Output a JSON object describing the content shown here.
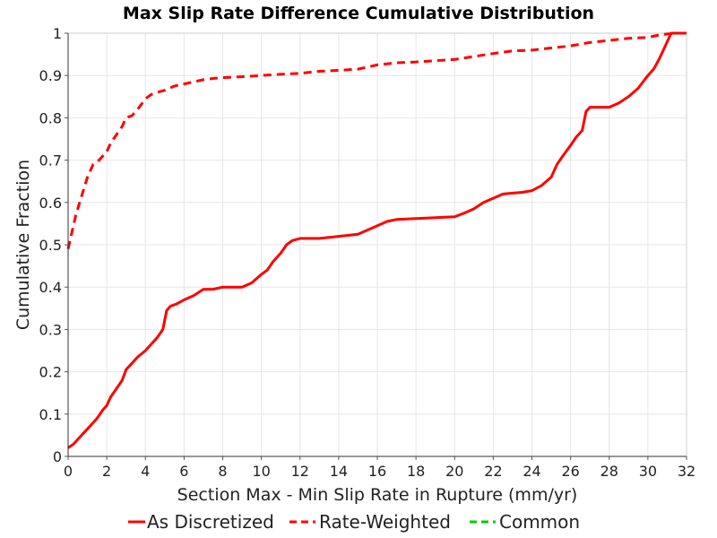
{
  "chart_data": {
    "type": "line",
    "title": "Max Slip Rate Difference Cumulative Distribution",
    "xlabel": "Section Max - Min Slip Rate in Rupture (mm/yr)",
    "ylabel": "Cumulative Fraction",
    "xlim": [
      0,
      32
    ],
    "ylim": [
      0,
      1
    ],
    "x_ticks": [
      "0",
      "2",
      "4",
      "6",
      "8",
      "10",
      "12",
      "14",
      "16",
      "18",
      "20",
      "22",
      "24",
      "26",
      "28",
      "30",
      "32"
    ],
    "y_ticks": [
      "0",
      "0.1",
      "0.2",
      "0.3",
      "0.4",
      "0.5",
      "0.6",
      "0.7",
      "0.8",
      "0.9",
      "1"
    ],
    "grid": true,
    "legend_position": "bottom",
    "series": [
      {
        "name": "As Discretized",
        "color": "#ff0000",
        "dash": "solid",
        "x": [
          0,
          0.3,
          0.6,
          0.9,
          1.2,
          1.5,
          1.8,
          2.0,
          2.2,
          2.5,
          2.8,
          3.0,
          3.3,
          3.6,
          4.0,
          4.3,
          4.6,
          4.9,
          5.1,
          5.3,
          5.6,
          6.0,
          6.5,
          7.0,
          7.5,
          8.0,
          8.5,
          9.0,
          9.5,
          10.0,
          10.3,
          10.6,
          11.0,
          11.3,
          11.6,
          12.0,
          13.0,
          14.0,
          15.0,
          15.5,
          16.0,
          16.5,
          17.0,
          18.0,
          19.0,
          20.0,
          20.5,
          21.0,
          21.5,
          22.0,
          22.5,
          23.0,
          23.5,
          24.0,
          24.5,
          25.0,
          25.3,
          25.6,
          26.0,
          26.3,
          26.6,
          26.8,
          27.0,
          27.5,
          28.0,
          28.5,
          29.0,
          29.5,
          30.0,
          30.3,
          30.6,
          30.9,
          31.2,
          31.4,
          32.0
        ],
        "y": [
          0.02,
          0.03,
          0.045,
          0.06,
          0.075,
          0.09,
          0.11,
          0.12,
          0.14,
          0.16,
          0.18,
          0.205,
          0.22,
          0.235,
          0.25,
          0.265,
          0.28,
          0.3,
          0.345,
          0.355,
          0.36,
          0.37,
          0.38,
          0.395,
          0.395,
          0.4,
          0.4,
          0.4,
          0.41,
          0.43,
          0.44,
          0.46,
          0.48,
          0.5,
          0.51,
          0.515,
          0.515,
          0.52,
          0.525,
          0.535,
          0.545,
          0.555,
          0.56,
          0.562,
          0.564,
          0.566,
          0.575,
          0.585,
          0.6,
          0.61,
          0.62,
          0.622,
          0.624,
          0.628,
          0.64,
          0.66,
          0.69,
          0.71,
          0.735,
          0.755,
          0.77,
          0.815,
          0.825,
          0.825,
          0.825,
          0.835,
          0.85,
          0.87,
          0.9,
          0.915,
          0.94,
          0.97,
          1.0,
          1.0,
          1.0
        ]
      },
      {
        "name": "Rate-Weighted",
        "color": "#ff0000",
        "dash": "dashed",
        "x": [
          0,
          0.2,
          0.4,
          0.6,
          0.8,
          1.0,
          1.3,
          1.6,
          2.0,
          2.2,
          2.5,
          2.8,
          3.0,
          3.3,
          3.6,
          4.0,
          4.3,
          4.6,
          5.0,
          5.5,
          6.0,
          6.5,
          7.0,
          7.5,
          8.0,
          9.0,
          10.0,
          11.0,
          12.0,
          13.0,
          14.0,
          15.0,
          16.0,
          17.0,
          18.0,
          19.0,
          20.0,
          21.0,
          22.0,
          23.0,
          24.0,
          25.0,
          26.0,
          27.0,
          28.0,
          29.0,
          30.0,
          30.5,
          31.0,
          31.5,
          32.0
        ],
        "y": [
          0.49,
          0.53,
          0.57,
          0.6,
          0.63,
          0.66,
          0.69,
          0.7,
          0.72,
          0.74,
          0.76,
          0.78,
          0.8,
          0.805,
          0.82,
          0.845,
          0.855,
          0.86,
          0.865,
          0.875,
          0.88,
          0.885,
          0.89,
          0.893,
          0.895,
          0.897,
          0.9,
          0.903,
          0.905,
          0.91,
          0.912,
          0.915,
          0.925,
          0.93,
          0.932,
          0.935,
          0.938,
          0.945,
          0.952,
          0.958,
          0.96,
          0.965,
          0.97,
          0.978,
          0.983,
          0.988,
          0.99,
          0.995,
          0.998,
          1.0,
          1.0
        ]
      },
      {
        "name": "Common",
        "color": "#00cc00",
        "dash": "dashed",
        "x": [],
        "y": []
      }
    ]
  }
}
